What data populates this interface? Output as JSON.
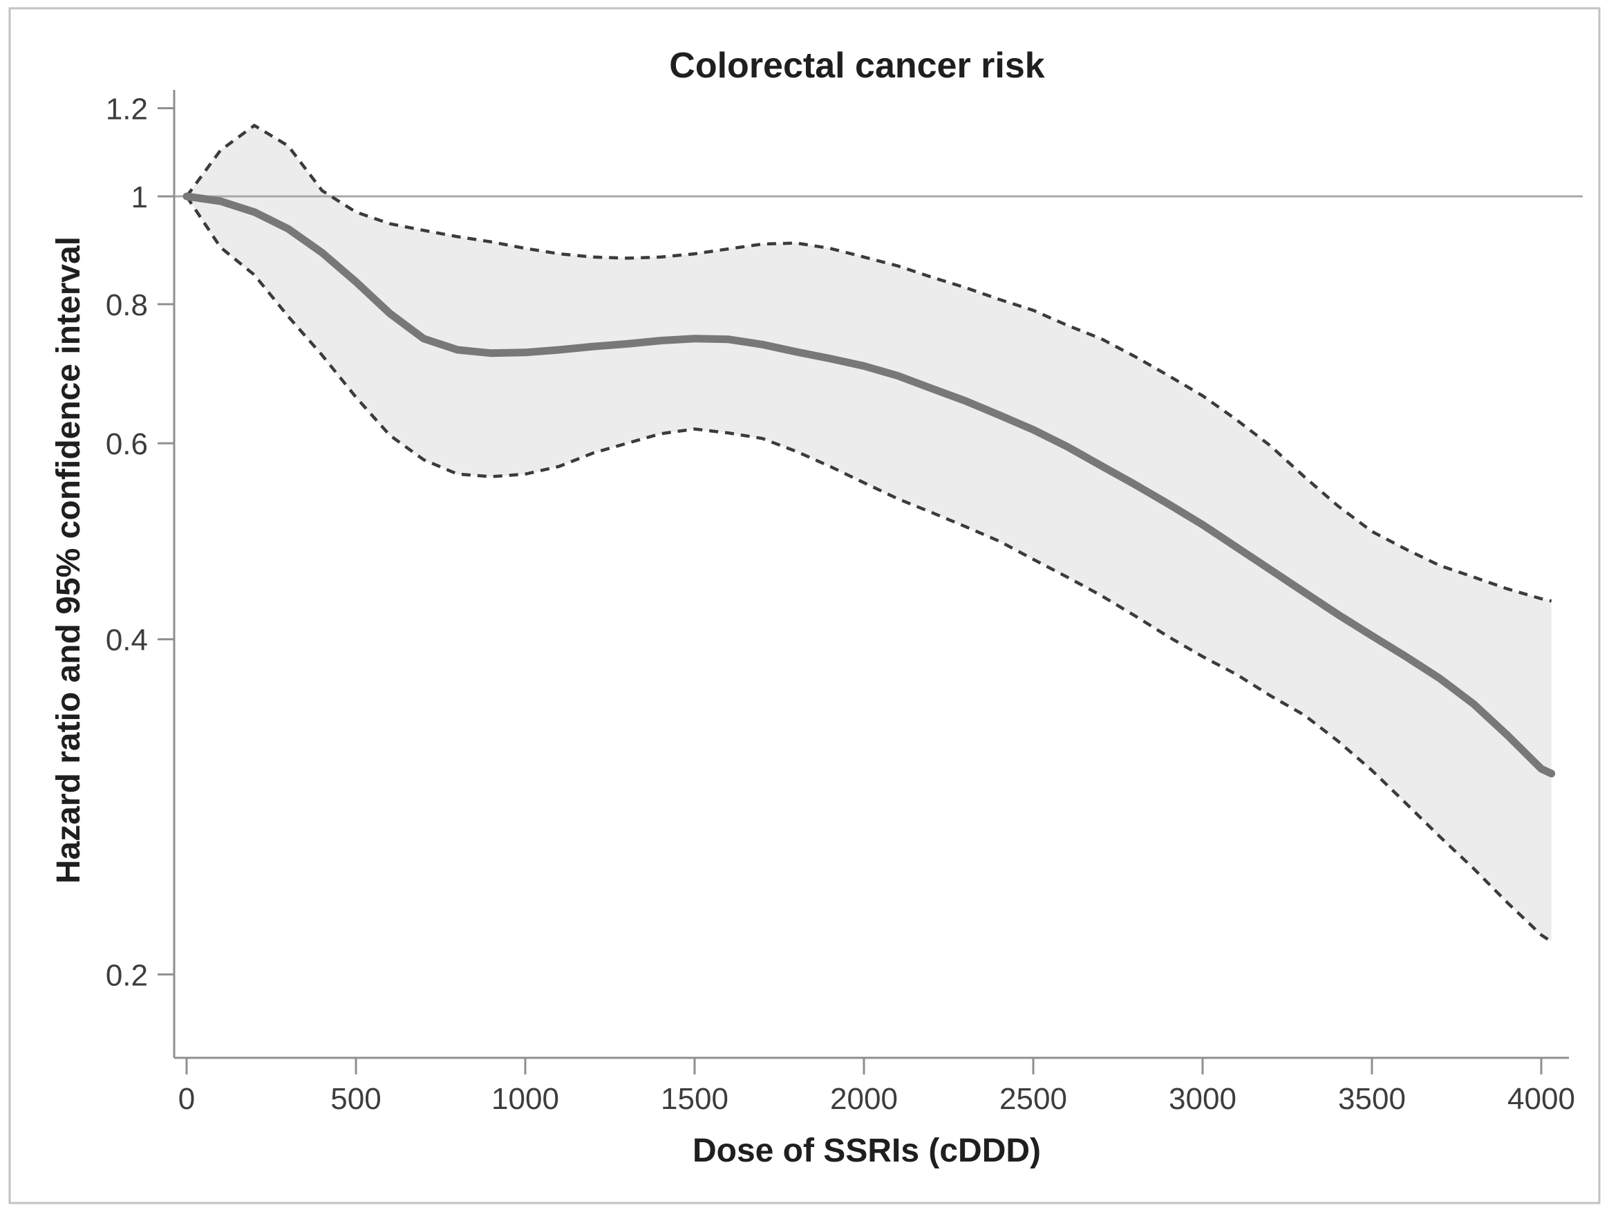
{
  "figure": {
    "title": "Colorectal cancer risk",
    "x_axis_title": "Dose of SSRIs (cDDD)",
    "y_axis_title": "Hazard ratio and 95% confidence interval"
  },
  "chart_data": {
    "type": "line",
    "title": "Colorectal cancer risk",
    "xlabel": "Dose of SSRIs (cDDD)",
    "ylabel": "Hazard ratio and 95% confidence interval",
    "x_scale": "linear",
    "y_scale": "log",
    "xlim": [
      0,
      4080
    ],
    "ylim": [
      0.168,
      1.246
    ],
    "x_ticks": [
      0,
      500,
      1000,
      1500,
      2000,
      2500,
      3000,
      3500,
      4000
    ],
    "y_ticks": [
      1.2,
      1,
      0.8,
      0.6,
      0.4,
      0.2
    ],
    "reference_line_y": 1.0,
    "grid": false,
    "legend": "none",
    "band_between": [
      "Lower 95% CI",
      "Upper 95% CI"
    ],
    "x": [
      0,
      100,
      200,
      300,
      400,
      500,
      600,
      700,
      800,
      900,
      1000,
      1100,
      1200,
      1300,
      1400,
      1500,
      1600,
      1700,
      1800,
      1900,
      2000,
      2100,
      2200,
      2300,
      2400,
      2500,
      2600,
      2700,
      2800,
      2900,
      3000,
      3100,
      3200,
      3300,
      3400,
      3500,
      3600,
      3700,
      3800,
      3900,
      4000,
      4030
    ],
    "series": [
      {
        "name": "Hazard ratio",
        "style": "solid",
        "values": [
          1.0,
          0.99,
          0.968,
          0.935,
          0.89,
          0.838,
          0.785,
          0.745,
          0.728,
          0.723,
          0.724,
          0.728,
          0.733,
          0.737,
          0.742,
          0.745,
          0.744,
          0.736,
          0.725,
          0.715,
          0.704,
          0.69,
          0.672,
          0.655,
          0.636,
          0.617,
          0.596,
          0.573,
          0.551,
          0.529,
          0.507,
          0.484,
          0.462,
          0.441,
          0.421,
          0.403,
          0.386,
          0.369,
          0.35,
          0.328,
          0.306,
          0.303
        ]
      },
      {
        "name": "Lower 95% CI",
        "style": "dashed",
        "values": [
          1.0,
          0.9,
          0.85,
          0.78,
          0.72,
          0.66,
          0.61,
          0.58,
          0.563,
          0.56,
          0.563,
          0.572,
          0.588,
          0.6,
          0.612,
          0.618,
          0.613,
          0.606,
          0.59,
          0.572,
          0.553,
          0.535,
          0.52,
          0.505,
          0.49,
          0.472,
          0.455,
          0.438,
          0.42,
          0.402,
          0.386,
          0.372,
          0.356,
          0.342,
          0.324,
          0.305,
          0.285,
          0.266,
          0.249,
          0.232,
          0.217,
          0.214
        ]
      },
      {
        "name": "Upper 95% CI",
        "style": "dashed",
        "values": [
          1.0,
          1.1,
          1.158,
          1.11,
          1.012,
          0.968,
          0.945,
          0.932,
          0.92,
          0.91,
          0.898,
          0.888,
          0.882,
          0.88,
          0.882,
          0.888,
          0.897,
          0.906,
          0.908,
          0.898,
          0.882,
          0.866,
          0.846,
          0.828,
          0.808,
          0.79,
          0.766,
          0.745,
          0.718,
          0.69,
          0.662,
          0.63,
          0.597,
          0.56,
          0.527,
          0.5,
          0.482,
          0.466,
          0.455,
          0.444,
          0.435,
          0.433
        ]
      }
    ],
    "colors": {
      "hazard_line": "#787878",
      "ci_dash": "#3b3b3b",
      "band_fill": "#ececec",
      "reference_line": "#a8a8a8",
      "axis_line": "#8f8f8f",
      "tick_text": "#3d3d3d",
      "title_text": "#1f1f1f",
      "figure_border": "#c2c2c2",
      "background": "#ffffff"
    }
  }
}
